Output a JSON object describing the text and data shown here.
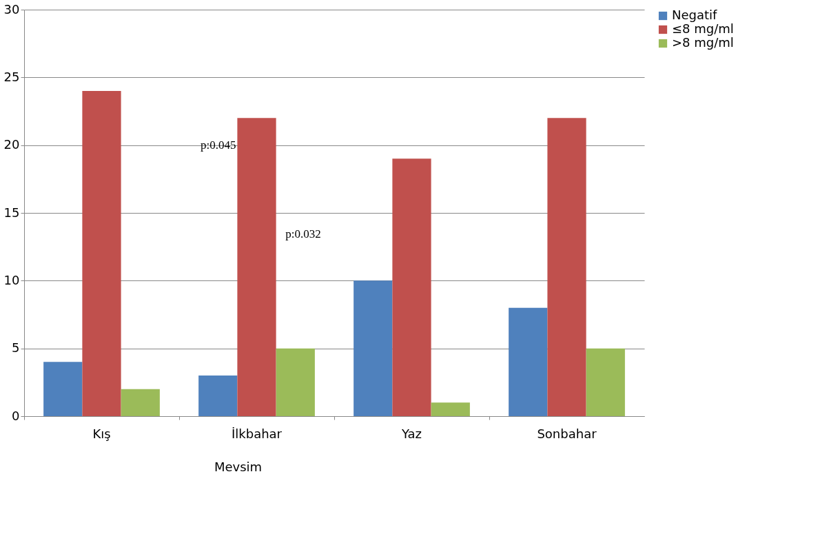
{
  "chart_data": {
    "type": "bar",
    "xlabel": "Mevsim",
    "categories": [
      "Kış",
      "İlkbahar",
      "Yaz",
      "Sonbahar"
    ],
    "series": [
      {
        "name": "Negatif",
        "color": "#4f81bd",
        "values": [
          4,
          3,
          10,
          8
        ]
      },
      {
        "name": "≤8 mg/ml",
        "color": "#c0504d",
        "values": [
          24,
          22,
          19,
          22
        ]
      },
      {
        "name": ">8 mg/ml",
        "color": "#9bbb59",
        "values": [
          2,
          5,
          1,
          5
        ]
      }
    ],
    "ylim": [
      0,
      30
    ],
    "yticks": [
      0,
      5,
      10,
      15,
      20,
      25,
      30
    ],
    "grid": "y",
    "legend": "right",
    "annotations": [
      "p:0.045",
      "p:0.032"
    ]
  }
}
